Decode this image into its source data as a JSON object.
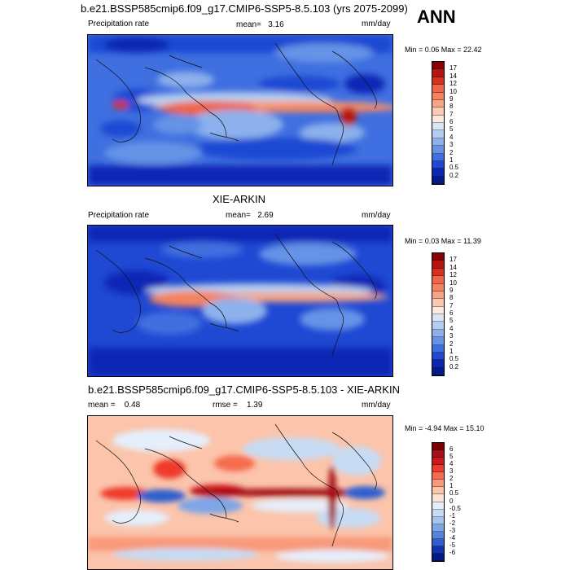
{
  "season": "ANN",
  "panels": [
    {
      "title": "b.e21.BSSP585cmip6.f09_g17.CMIP6-SSP5-8.5.103 (yrs 2075-2099)",
      "left_label": "Precipitation rate",
      "stat_label": "mean=",
      "stat_value": "3.16",
      "units": "mm/day",
      "minmax": "Min =   0.06 Max =  22.42",
      "colorbar": {
        "labels": [
          "17",
          "14",
          "12",
          "10",
          "9",
          "8",
          "7",
          "6",
          "5",
          "4",
          "3",
          "2",
          "1",
          "0.5",
          "0.2"
        ],
        "colors": [
          "#8a0000",
          "#b8140e",
          "#d7301f",
          "#ef6548",
          "#f4845f",
          "#f8a585",
          "#fbc9b2",
          "#fde9df",
          "#d7e6f7",
          "#b5cdf0",
          "#8cb1ec",
          "#6593e6",
          "#3f6fe0",
          "#1f48d3",
          "#0b26b5",
          "#031a8a"
        ]
      }
    },
    {
      "title": "XIE-ARKIN",
      "left_label": "Precipitation rate",
      "stat_label": "mean=",
      "stat_value": "2.69",
      "units": "mm/day",
      "minmax": "Min =  0.03 Max =  11.39",
      "colorbar": {
        "labels": [
          "17",
          "14",
          "12",
          "10",
          "9",
          "8",
          "7",
          "6",
          "5",
          "4",
          "3",
          "2",
          "1",
          "0.5",
          "0.2"
        ],
        "colors": [
          "#8a0000",
          "#b8140e",
          "#d7301f",
          "#ef6548",
          "#f4845f",
          "#f8a585",
          "#fbc9b2",
          "#fde9df",
          "#d7e6f7",
          "#b5cdf0",
          "#8cb1ec",
          "#6593e6",
          "#3f6fe0",
          "#1f48d3",
          "#0b26b5",
          "#031a8a"
        ]
      }
    },
    {
      "title": "b.e21.BSSP585cmip6.f09_g17.CMIP6-SSP5-8.5.103 - XIE-ARKIN",
      "left_label": "mean =",
      "left_value": "0.48",
      "stat_label": "rmse =",
      "stat_value": "1.39",
      "units": "mm/day",
      "minmax": "Min =  -4.94 Max =  15.10",
      "colorbar": {
        "labels": [
          "6",
          "5",
          "4",
          "3",
          "2",
          "1",
          "0.5",
          "0",
          "-0.5",
          "-1",
          "-2",
          "-3",
          "-4",
          "-5",
          "-6"
        ],
        "colors": [
          "#7a0000",
          "#a50f15",
          "#cb181d",
          "#ef3b2c",
          "#f46d4e",
          "#f89a7a",
          "#fbc4ab",
          "#fde3d6",
          "#e5eefb",
          "#c7dbf4",
          "#a4c4ee",
          "#7ea6e6",
          "#5584db",
          "#2f5fcd",
          "#1233b0",
          "#021a84"
        ]
      }
    }
  ]
}
